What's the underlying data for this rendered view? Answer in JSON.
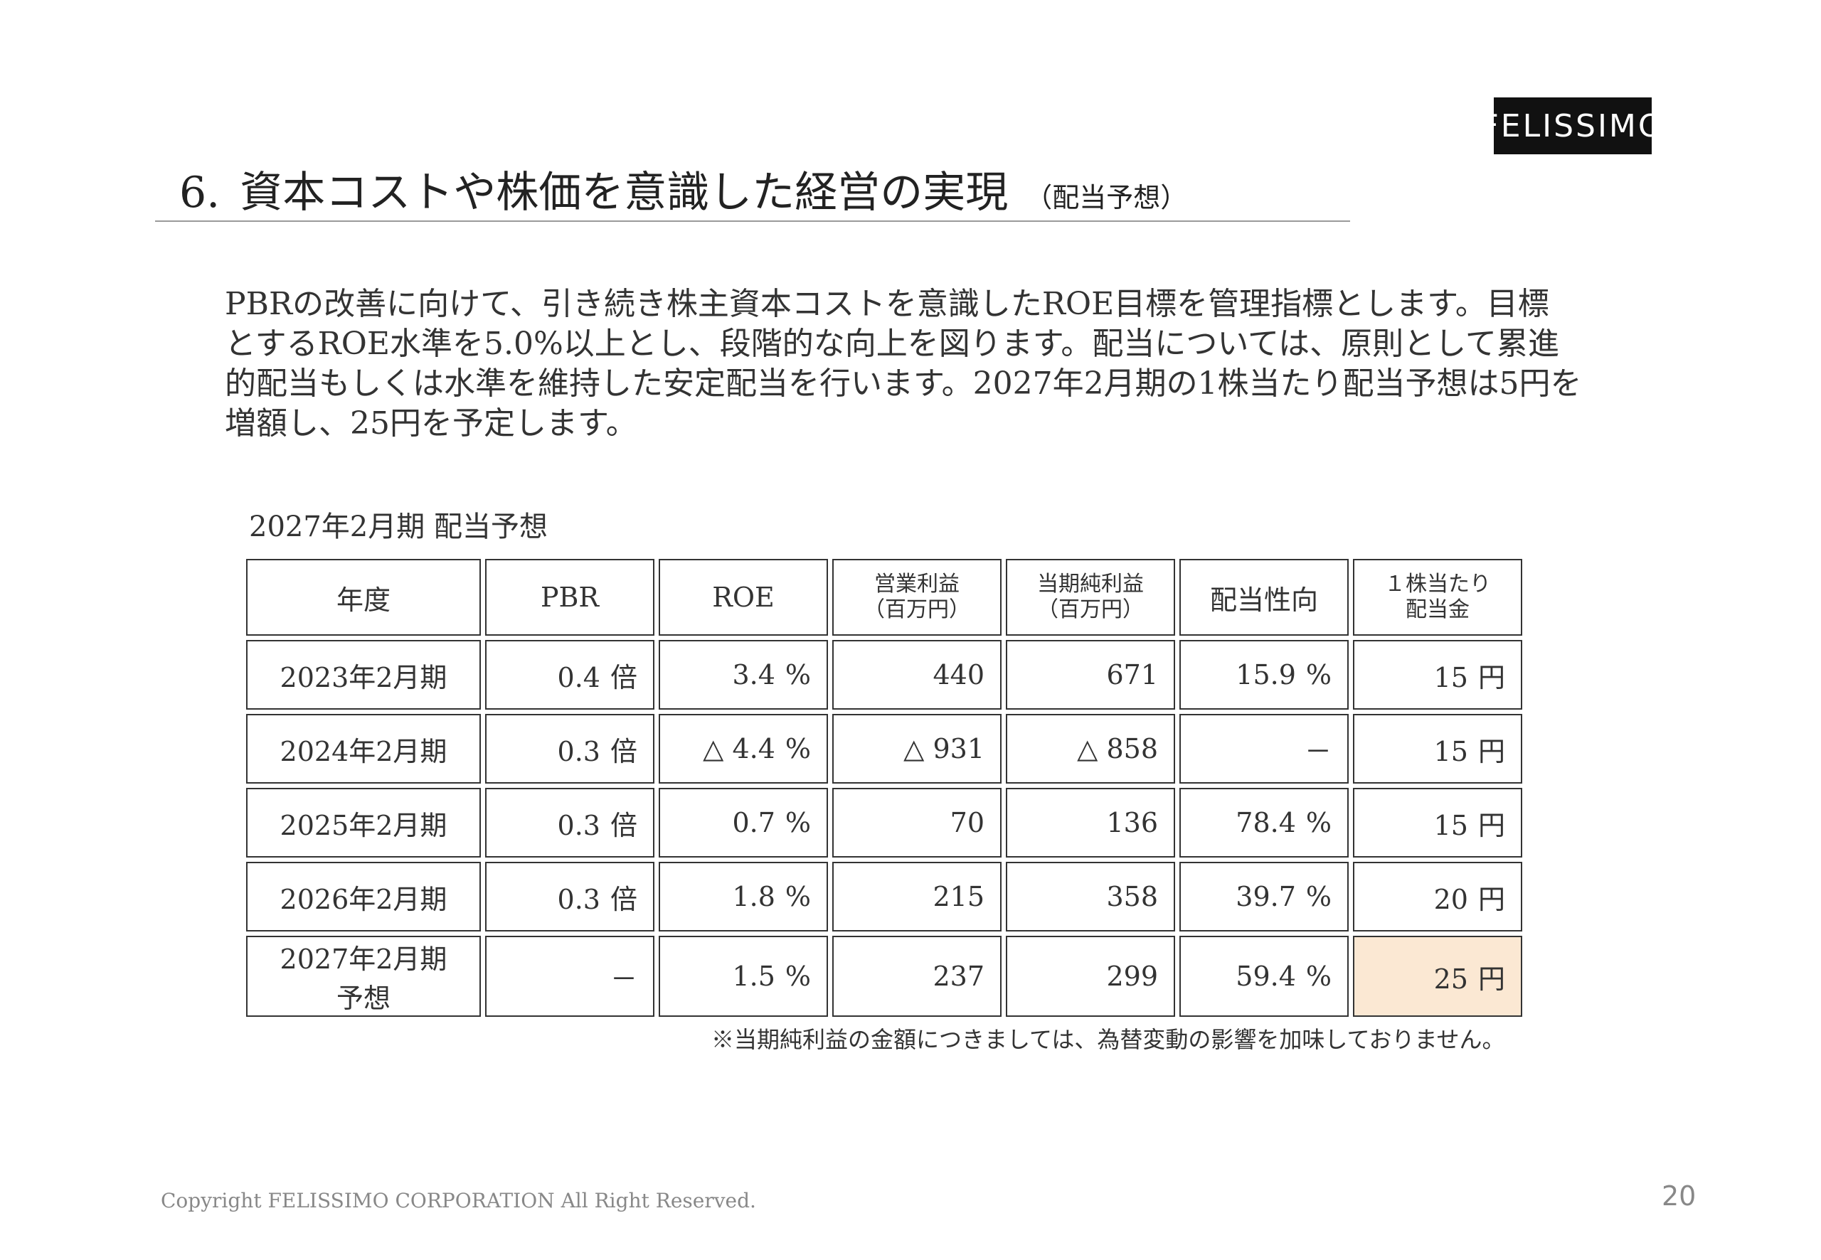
{
  "logo": {
    "text": "FELISSIMO"
  },
  "header": {
    "number": "6.",
    "title": "資本コストや株価を意識した経営の実現",
    "subtitle": "（配当予想）"
  },
  "body": {
    "lines": [
      "PBRの改善に向けて、引き続き株主資本コストを意識したROE目標を管理指標とします。目標",
      "とするROE水準を5.0%以上とし、段階的な向上を図ります。配当については、原則として累進",
      "的配当もしくは水準を維持した安定配当を行います。2027年2月期の1株当たり配当予想は5円を",
      "増額し、25円を予定します。"
    ]
  },
  "table": {
    "caption": "2027年2月期 配当予想",
    "headers": {
      "year": "年度",
      "pbr": "PBR",
      "roe": "ROE",
      "op_profit_1": "営業利益",
      "op_profit_2": "（百万円）",
      "net_profit_1": "当期純利益",
      "net_profit_2": "（百万円）",
      "payout": "配当性向",
      "dps_1": "１株当たり",
      "dps_2": "配当金"
    },
    "units": {
      "pbr": "倍",
      "pct": "%",
      "yen": "円"
    },
    "rows": [
      {
        "year": "2023年2月期",
        "pbr": "0.4",
        "roe": "3.4",
        "op": "440",
        "net": "671",
        "payout": "15.9",
        "dps": "15"
      },
      {
        "year": "2024年2月期",
        "pbr": "0.3",
        "roe": "△ 4.4",
        "op": "△ 931",
        "net": "△ 858",
        "payout": "－",
        "dps": "15"
      },
      {
        "year": "2025年2月期",
        "pbr": "0.3",
        "roe": "0.7",
        "op": "70",
        "net": "136",
        "payout": "78.4",
        "dps": "15"
      },
      {
        "year": "2026年2月期",
        "pbr": "0.3",
        "roe": "1.8",
        "op": "215",
        "net": "358",
        "payout": "39.7",
        "dps": "20"
      },
      {
        "year": "2027年2月期 予想",
        "pbr": "－",
        "roe": "1.5",
        "op": "237",
        "net": "299",
        "payout": "59.4",
        "dps": "25"
      }
    ],
    "highlight_color": "#fbe8d3"
  },
  "note": "※当期純利益の金額につきましては、為替変動の影響を加味しておりません。",
  "footer": {
    "copyright": "Copyright FELISSIMO CORPORATION All Right Reserved.",
    "page": "20"
  }
}
